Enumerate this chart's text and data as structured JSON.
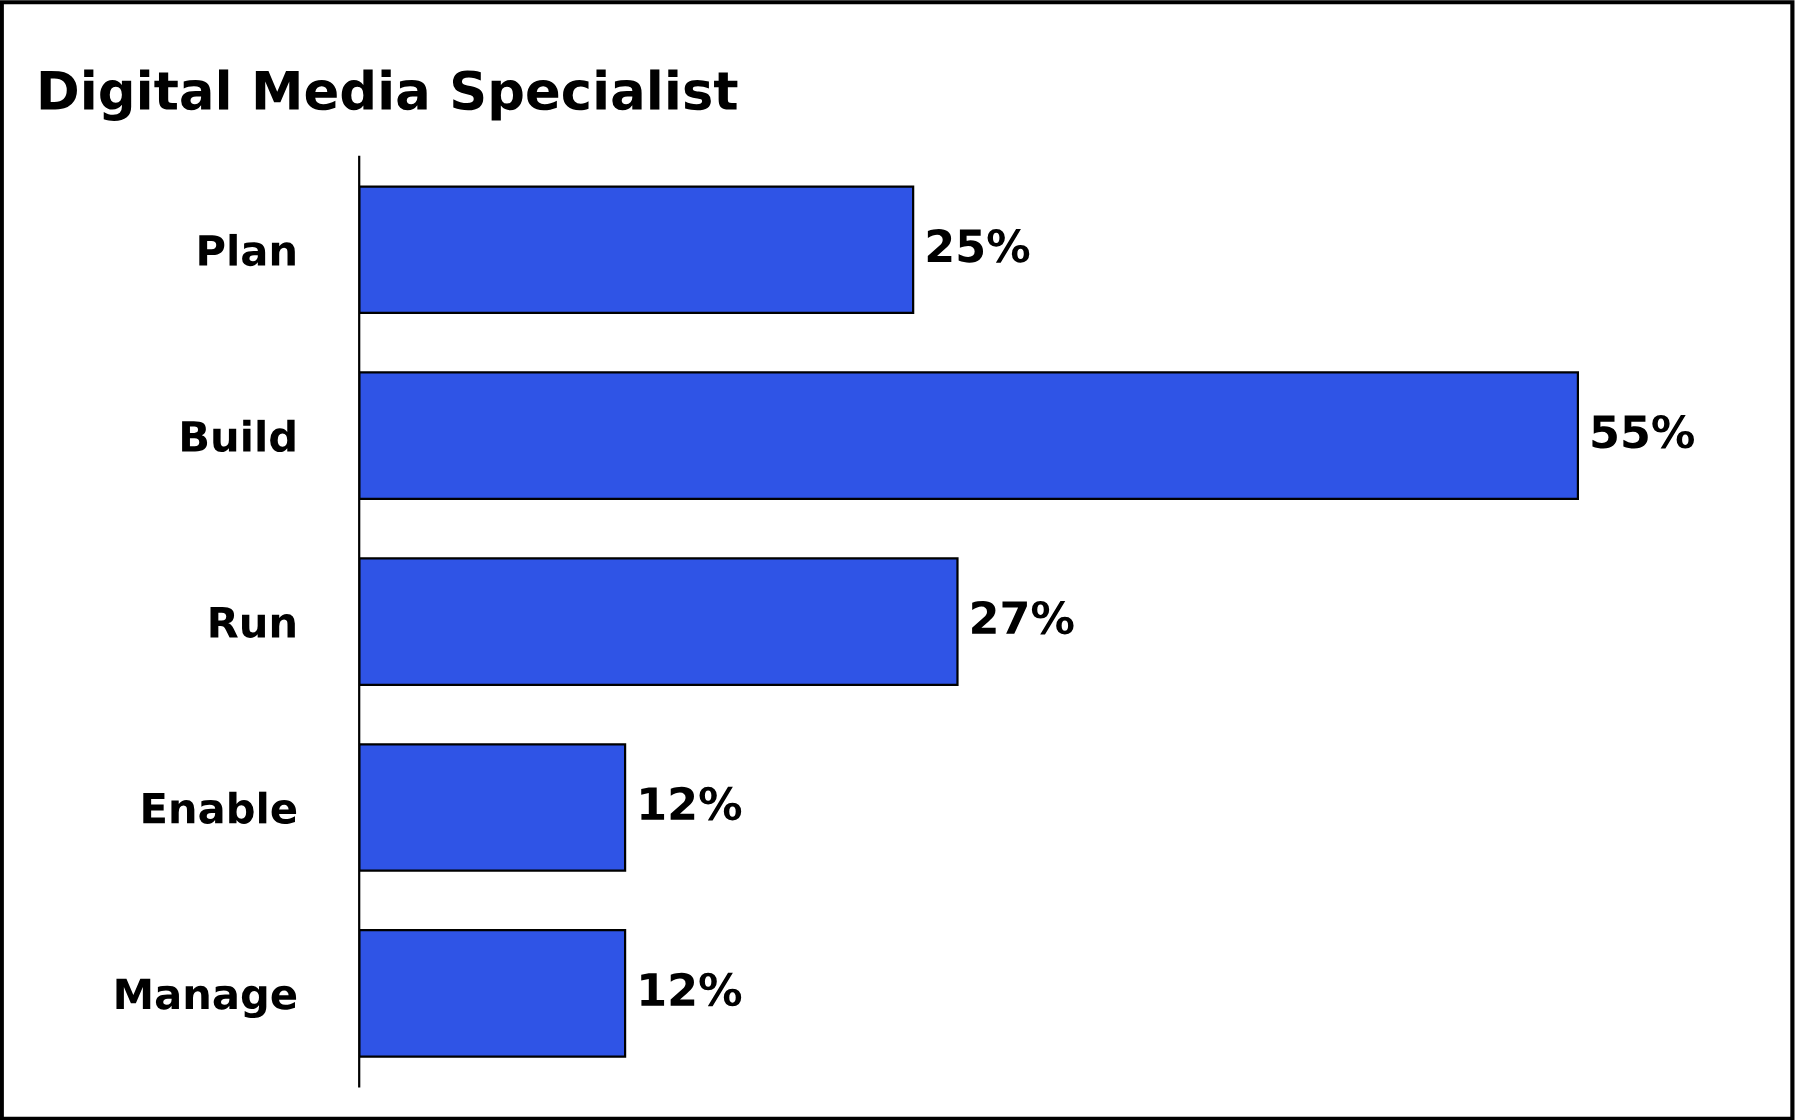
{
  "chart_data": {
    "type": "bar",
    "orientation": "horizontal",
    "title": "Digital Media Specialist",
    "categories": [
      "Plan",
      "Build",
      "Run",
      "Enable",
      "Manage"
    ],
    "values": [
      25,
      55,
      27,
      12,
      12
    ],
    "value_labels": [
      "25%",
      "55%",
      "27%",
      "12%",
      "12%"
    ],
    "color": "#2f54e6",
    "grid": false,
    "legend": false
  }
}
